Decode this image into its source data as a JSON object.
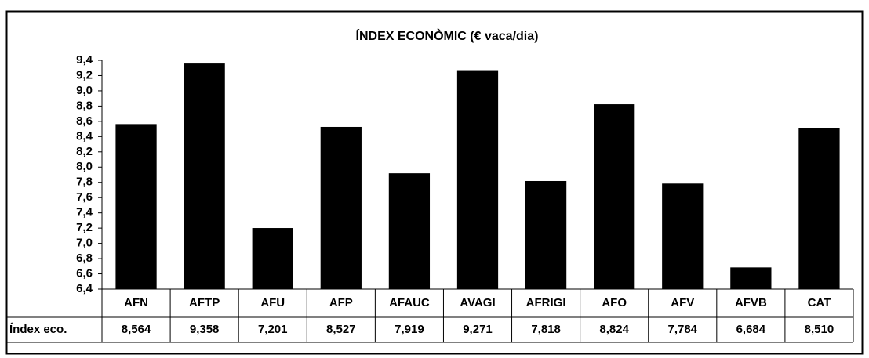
{
  "chart_data": {
    "type": "bar",
    "title": "ÍNDEX ECONÒMIC (€ vaca/dia)",
    "categories": [
      "AFN",
      "AFTP",
      "AFU",
      "AFP",
      "AFAUC",
      "AVAGI",
      "AFRIGI",
      "AFO",
      "AFV",
      "AFVB",
      "CAT"
    ],
    "series": [
      {
        "name": "Índex eco.",
        "color": "#000000",
        "values": [
          8.564,
          9.358,
          7.201,
          8.527,
          7.919,
          9.271,
          7.818,
          8.824,
          7.784,
          6.684,
          8.51
        ],
        "value_labels": [
          "8,564",
          "9,358",
          "7,201",
          "8,527",
          "7,919",
          "9,271",
          "7,818",
          "8,824",
          "7,784",
          "6,684",
          "8,510"
        ]
      }
    ],
    "ylim": [
      6.4,
      9.4
    ],
    "yticks": [
      {
        "value": 6.4,
        "label": "6,4"
      },
      {
        "value": 6.6,
        "label": "6,6"
      },
      {
        "value": 6.8,
        "label": "6,8"
      },
      {
        "value": 7.0,
        "label": "7,0"
      },
      {
        "value": 7.2,
        "label": "7,2"
      },
      {
        "value": 7.4,
        "label": "7,4"
      },
      {
        "value": 7.6,
        "label": "7,6"
      },
      {
        "value": 7.8,
        "label": "7,8"
      },
      {
        "value": 8.0,
        "label": "8,0"
      },
      {
        "value": 8.2,
        "label": "8,2"
      },
      {
        "value": 8.4,
        "label": "8,4"
      },
      {
        "value": 8.6,
        "label": "8,6"
      },
      {
        "value": 8.8,
        "label": "8,8"
      },
      {
        "value": 9.0,
        "label": "9,0"
      },
      {
        "value": 9.2,
        "label": "9,2"
      },
      {
        "value": 9.4,
        "label": "9,4"
      }
    ],
    "grid": false
  }
}
